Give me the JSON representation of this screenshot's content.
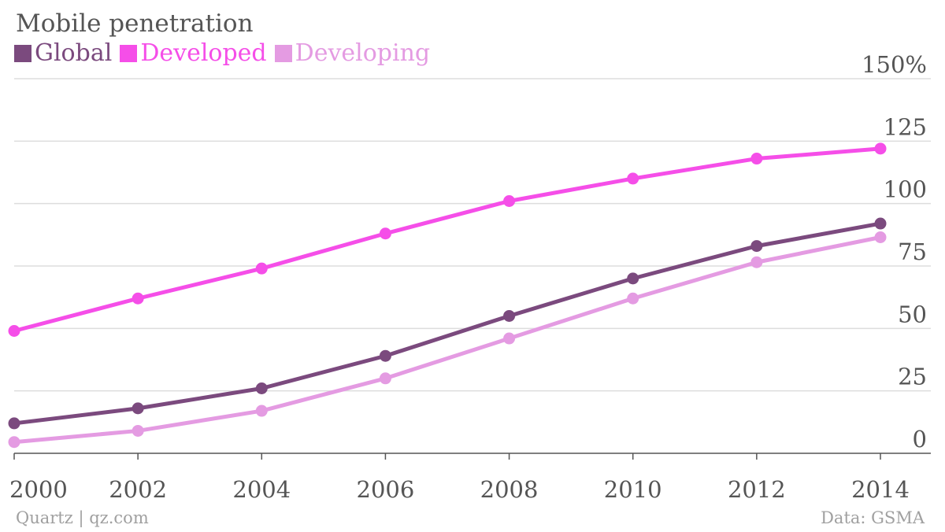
{
  "chart_data": {
    "type": "line",
    "title": "Mobile penetration",
    "x": [
      2000,
      2002,
      2004,
      2006,
      2008,
      2010,
      2012,
      2014
    ],
    "series": [
      {
        "name": "Global",
        "color": "#7b4a7e",
        "values": [
          12,
          18,
          26,
          39,
          55,
          70,
          83,
          92
        ]
      },
      {
        "name": "Developed",
        "color": "#f54ee8",
        "values": [
          49,
          62,
          74,
          88,
          101,
          110,
          118,
          122
        ]
      },
      {
        "name": "Developing",
        "color": "#e49be2",
        "values": [
          4.5,
          9,
          17,
          30,
          46,
          62,
          76.5,
          86.5
        ]
      }
    ],
    "ylim": [
      0,
      150
    ],
    "yticks": [
      0,
      25,
      50,
      75,
      100,
      125,
      150
    ],
    "ytick_labels": [
      "0",
      "25",
      "50",
      "75",
      "100",
      "125",
      "150%"
    ],
    "xtick_labels": [
      "2000",
      "2002",
      "2004",
      "2006",
      "2008",
      "2010",
      "2012",
      "2014"
    ],
    "grid": true,
    "legend": "top-left"
  },
  "footer": {
    "source_left": "Quartz | qz.com",
    "source_right": "Data: GSMA"
  }
}
